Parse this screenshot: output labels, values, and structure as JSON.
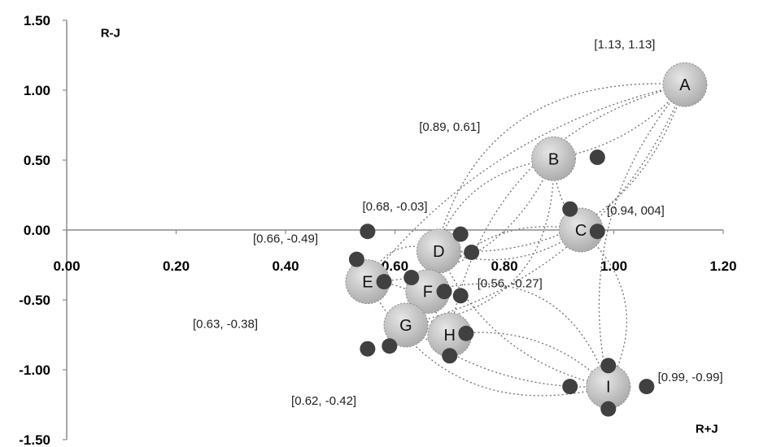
{
  "chart_data": {
    "type": "scatter",
    "title": "",
    "xlabel": "R+J",
    "ylabel": "R-J",
    "xlim": [
      0,
      1.2
    ],
    "ylim": [
      -1.5,
      1.5
    ],
    "x_ticks": [
      "0.00",
      "0.20",
      "0.40",
      "0.60",
      "0.80",
      "1.00",
      "1.20"
    ],
    "y_ticks": [
      "1.50",
      "1.00",
      "0.50",
      "0.00",
      "-0.50",
      "-1.00",
      "-1.50"
    ],
    "grid": false,
    "nodes": [
      {
        "label": "A",
        "x": 1.13,
        "y": 1.04
      },
      {
        "label": "B",
        "x": 0.89,
        "y": 0.51
      },
      {
        "label": "C",
        "x": 0.94,
        "y": 0.0
      },
      {
        "label": "D",
        "x": 0.68,
        "y": -0.15
      },
      {
        "label": "E",
        "x": 0.55,
        "y": -0.37
      },
      {
        "label": "F",
        "x": 0.66,
        "y": -0.44
      },
      {
        "label": "G",
        "x": 0.62,
        "y": -0.68
      },
      {
        "label": "H",
        "x": 0.7,
        "y": -0.75
      },
      {
        "label": "I",
        "x": 0.99,
        "y": -1.12
      }
    ],
    "sub_points": [
      {
        "x": 0.97,
        "y": 0.52
      },
      {
        "x": 0.92,
        "y": 0.15
      },
      {
        "x": 0.97,
        "y": -0.01
      },
      {
        "x": 0.72,
        "y": -0.03
      },
      {
        "x": 0.74,
        "y": -0.16
      },
      {
        "x": 0.55,
        "y": -0.01
      },
      {
        "x": 0.53,
        "y": -0.21
      },
      {
        "x": 0.58,
        "y": -0.37
      },
      {
        "x": 0.63,
        "y": -0.34
      },
      {
        "x": 0.69,
        "y": -0.44
      },
      {
        "x": 0.72,
        "y": -0.47
      },
      {
        "x": 0.73,
        "y": -0.74
      },
      {
        "x": 0.55,
        "y": -0.85
      },
      {
        "x": 0.59,
        "y": -0.83
      },
      {
        "x": 0.7,
        "y": -0.9
      },
      {
        "x": 0.99,
        "y": -0.97
      },
      {
        "x": 0.92,
        "y": -1.12
      },
      {
        "x": 1.06,
        "y": -1.12
      },
      {
        "x": 0.99,
        "y": -1.28
      }
    ],
    "annotations": [
      {
        "text": "[1.13, 1.13]",
        "x": 1.02,
        "y": 1.3
      },
      {
        "text": "[0.89, 0.61]",
        "x": 0.7,
        "y": 0.71
      },
      {
        "text": "[0.68, -0.03]",
        "x": 0.6,
        "y": 0.14
      },
      {
        "text": "[0.94, 004]",
        "x": 1.04,
        "y": 0.11
      },
      {
        "text": "[0.66, -0.49]",
        "x": 0.4,
        "y": -0.09
      },
      {
        "text": "[0.56, -0.27]",
        "x": 0.81,
        "y": -0.41
      },
      {
        "text": "[0.63, -0.38]",
        "x": 0.29,
        "y": -0.7
      },
      {
        "text": "[0.99, -0.99]",
        "x": 1.14,
        "y": -1.08
      },
      {
        "text": "[0.62, -0.42]",
        "x": 0.47,
        "y": -1.25
      }
    ],
    "connections": [
      [
        "A",
        "E"
      ],
      [
        "A",
        "G"
      ],
      [
        "A",
        "H"
      ],
      [
        "A",
        "D"
      ],
      [
        "A",
        "F"
      ],
      [
        "A",
        "B"
      ],
      [
        "A",
        "I"
      ],
      [
        "B",
        "E"
      ],
      [
        "B",
        "F"
      ],
      [
        "B",
        "G"
      ],
      [
        "B",
        "C"
      ],
      [
        "C",
        "D"
      ],
      [
        "C",
        "F"
      ],
      [
        "C",
        "I"
      ],
      [
        "D",
        "E"
      ],
      [
        "D",
        "G"
      ],
      [
        "D",
        "I"
      ],
      [
        "E",
        "H"
      ],
      [
        "E",
        "I"
      ],
      [
        "F",
        "I"
      ],
      [
        "G",
        "I"
      ],
      [
        "H",
        "I"
      ]
    ],
    "colors": {
      "node_fill_light": "#e6e6e6",
      "node_fill_dark": "#a9a9a9",
      "node_border": "#8c8c8c",
      "sub_point": "#404040",
      "dotted_line": "#6f6f6f",
      "axis": "#8a8a8a"
    }
  }
}
